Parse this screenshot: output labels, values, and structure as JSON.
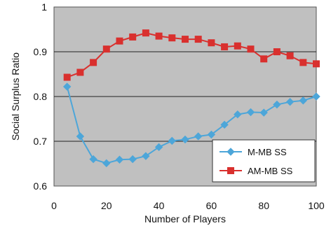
{
  "chart_data": {
    "type": "line",
    "xlabel": "Number of Players",
    "ylabel": "Social Surplus Ratio",
    "xlim": [
      0,
      100
    ],
    "ylim": [
      0.6,
      1.0
    ],
    "x_ticks": [
      0,
      20,
      40,
      60,
      80,
      100
    ],
    "y_ticks": [
      0.6,
      0.7,
      0.8,
      0.9,
      1.0
    ],
    "x_tick_labels": [
      "0",
      "20",
      "40",
      "60",
      "80",
      "100"
    ],
    "y_tick_labels": [
      "0.6",
      "0.7",
      "0.8",
      "0.9",
      "1"
    ],
    "grid": "horizontal",
    "legend_position": "bottom-right",
    "plot_background": "#c0c0c0",
    "x": [
      5,
      10,
      15,
      20,
      25,
      30,
      35,
      40,
      45,
      50,
      55,
      60,
      65,
      70,
      75,
      80,
      85,
      90,
      95,
      100
    ],
    "series": [
      {
        "name": "M-MB SS",
        "color": "#4da6d9",
        "marker": "diamond",
        "values": [
          0.822,
          0.711,
          0.66,
          0.651,
          0.659,
          0.66,
          0.667,
          0.687,
          0.701,
          0.704,
          0.711,
          0.715,
          0.737,
          0.76,
          0.765,
          0.764,
          0.782,
          0.788,
          0.791,
          0.8
        ]
      },
      {
        "name": "AM-MB SS",
        "color": "#d9302e",
        "marker": "square",
        "values": [
          0.843,
          0.854,
          0.876,
          0.906,
          0.924,
          0.933,
          0.942,
          0.935,
          0.931,
          0.928,
          0.928,
          0.92,
          0.911,
          0.913,
          0.906,
          0.884,
          0.9,
          0.891,
          0.876,
          0.873
        ]
      }
    ]
  }
}
